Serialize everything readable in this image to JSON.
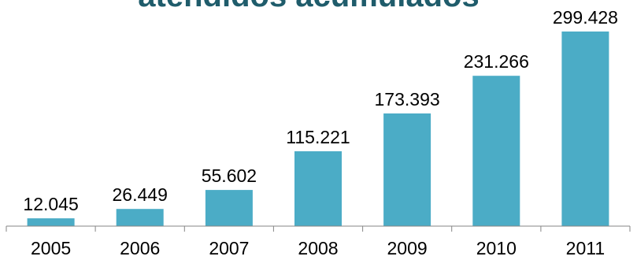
{
  "chart_data": {
    "type": "bar",
    "title": "atendidos acumulados",
    "categories": [
      "2005",
      "2006",
      "2007",
      "2008",
      "2009",
      "2010",
      "2011"
    ],
    "values": [
      12045,
      26449,
      55602,
      115221,
      173393,
      231266,
      299428
    ],
    "value_labels": [
      "12.045",
      "26.449",
      "55.602",
      "115.221",
      "173.393",
      "231.266",
      "299.428"
    ],
    "ylim": [
      0,
      299428
    ],
    "grid": false,
    "legend": "none",
    "colors": {
      "bar": "#4BACC6",
      "title": "#1F5C6B",
      "axis": "#868686"
    }
  }
}
